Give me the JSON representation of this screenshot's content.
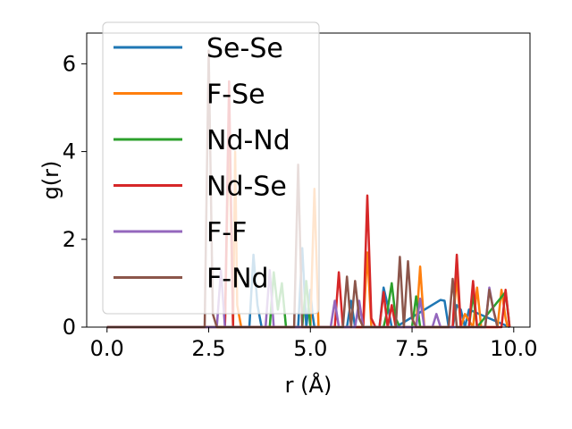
{
  "chart_data": {
    "type": "line",
    "xlabel": "r (Å)",
    "ylabel": "g(r)",
    "xlim": [
      -0.5,
      10.4
    ],
    "ylim": [
      0,
      6.7
    ],
    "xticks": [
      0.0,
      2.5,
      5.0,
      7.5,
      10.0
    ],
    "xtick_labels": [
      "0.0",
      "2.5",
      "5.0",
      "7.5",
      "10.0"
    ],
    "yticks": [
      0,
      2,
      4,
      6
    ],
    "ytick_labels": [
      "0",
      "2",
      "4",
      "6"
    ],
    "legend_position": "upper-left",
    "series": [
      {
        "name": "Se-Se",
        "color": "#1f77b4",
        "x": [
          0,
          3.5,
          3.6,
          3.7,
          3.8,
          4.7,
          4.8,
          4.9,
          5.0,
          5.05,
          5.1,
          5.9,
          6.0,
          6.1,
          6.7,
          6.8,
          6.9,
          7.0,
          7.1,
          8.2,
          8.3,
          8.4,
          8.5,
          8.6,
          8.7,
          8.8,
          8.9,
          9.9
        ],
        "y": [
          0,
          0,
          1.65,
          0.5,
          0,
          0,
          1.8,
          0,
          0.85,
          0.3,
          0,
          0,
          0.6,
          0,
          0,
          0.9,
          0.5,
          0,
          0,
          0.62,
          0.6,
          0,
          0,
          0.5,
          0.4,
          0,
          0.4,
          0
        ]
      },
      {
        "name": "F-Se",
        "color": "#ff7f0e",
        "x": [
          0,
          2.9,
          3.0,
          3.1,
          3.15,
          3.2,
          3.3,
          5.0,
          5.1,
          5.2,
          6.3,
          6.4,
          6.5,
          7.6,
          7.7,
          7.8,
          8.5,
          8.6,
          8.7,
          8.8,
          9.0,
          9.1,
          9.2,
          9.6,
          9.7,
          9.8,
          9.85
        ],
        "y": [
          0,
          0,
          4.6,
          0,
          4.0,
          0.5,
          0,
          0,
          3.15,
          0,
          0,
          1.7,
          0,
          0,
          1.38,
          0,
          0,
          1.15,
          0,
          0.3,
          0,
          0.9,
          0,
          0,
          0.85,
          0.2,
          0
        ]
      },
      {
        "name": "Nd-Nd",
        "color": "#2ca02c",
        "x": [
          0,
          4.0,
          4.1,
          4.2,
          4.3,
          4.4,
          4.8,
          4.9,
          5.0,
          6.8,
          6.9,
          7.0,
          7.1,
          7.2,
          7.5,
          7.6,
          7.7,
          8.9,
          9.0,
          9.1,
          9.8,
          9.9
        ],
        "y": [
          0,
          0,
          1.25,
          0.4,
          1.0,
          0,
          0,
          1.05,
          0,
          0,
          0.4,
          1.0,
          0.2,
          0,
          0,
          0.7,
          0,
          0,
          0.75,
          0,
          0.8,
          0
        ]
      },
      {
        "name": "Nd-Se",
        "color": "#d62728",
        "x": [
          0,
          2.9,
          3.0,
          3.1,
          3.2,
          5.6,
          5.7,
          5.8,
          5.9,
          6.3,
          6.4,
          6.5,
          6.6,
          6.7,
          6.8,
          6.9,
          7.0,
          7.1,
          8.5,
          8.6,
          8.7,
          8.9,
          9.0,
          9.1,
          9.7,
          9.8,
          9.9
        ],
        "y": [
          0,
          0,
          5.6,
          0,
          0,
          0,
          1.25,
          0,
          0,
          0,
          3.0,
          0.2,
          0,
          0,
          0.8,
          0,
          0.5,
          0,
          0,
          1.65,
          0,
          0,
          1.05,
          0,
          0,
          0.85,
          0
        ]
      },
      {
        "name": "F-F",
        "color": "#9467bd",
        "x": [
          0,
          2.7,
          2.8,
          2.9,
          3.9,
          4.0,
          4.1,
          5.5,
          5.6,
          5.7,
          6.1,
          6.2,
          6.3,
          7.6,
          7.7,
          7.8,
          8.0,
          8.1,
          8.2,
          9.3,
          9.4,
          9.5,
          9.6
        ],
        "y": [
          0,
          0,
          1.3,
          0,
          0,
          1.3,
          0,
          0,
          0.6,
          0,
          0,
          0.6,
          0,
          0,
          0.65,
          0,
          0,
          0.3,
          0,
          0,
          0.9,
          0.4,
          0
        ]
      },
      {
        "name": "F-Nd",
        "color": "#8c564b",
        "x": [
          0,
          2.4,
          2.5,
          2.6,
          2.7,
          4.6,
          4.7,
          4.8,
          5.8,
          5.9,
          6.0,
          6.1,
          6.2,
          6.3,
          7.1,
          7.2,
          7.3,
          7.4,
          7.5,
          7.6,
          8.4,
          8.5,
          8.6,
          9.3,
          9.4,
          9.5,
          9.6
        ],
        "y": [
          0,
          0,
          6.3,
          0.3,
          0,
          0,
          3.7,
          0,
          0,
          1.15,
          0,
          1.05,
          0.2,
          0,
          0,
          1.6,
          0,
          1.5,
          0.2,
          0,
          0,
          1.1,
          0,
          0,
          0.85,
          0.4,
          0
        ]
      }
    ]
  }
}
